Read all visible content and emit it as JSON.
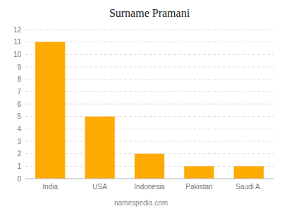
{
  "chart_data": {
    "type": "bar",
    "title": "Surname Pramani",
    "categories": [
      "India",
      "USA",
      "Indonesia",
      "Pakistan",
      "Saudi A."
    ],
    "values": [
      11,
      5,
      2,
      1,
      1
    ],
    "color": "#FFAA00",
    "ylim": [
      0,
      12
    ],
    "yticks": [
      0,
      1,
      2,
      3,
      4,
      5,
      6,
      7,
      8,
      9,
      10,
      11,
      12
    ],
    "grid": true,
    "annotations": [
      "namespedia.com"
    ]
  }
}
